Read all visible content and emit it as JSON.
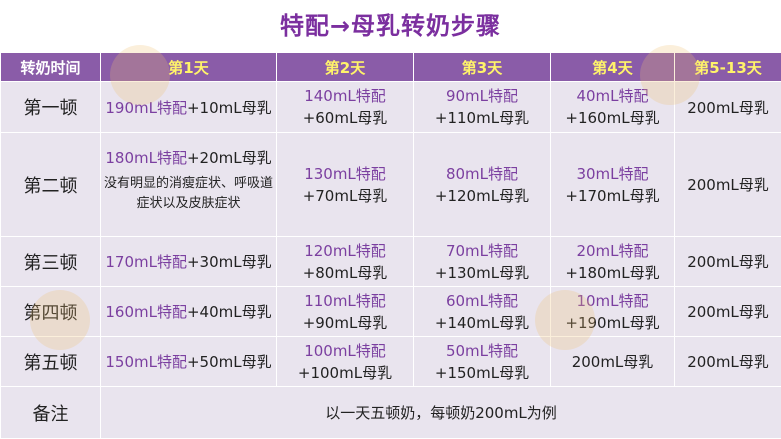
{
  "title": "特配→母乳转奶步骤",
  "header": {
    "label": "转奶时间",
    "days": [
      "第1天",
      "第2天",
      "第3天",
      "第4天",
      "第5-13天"
    ]
  },
  "rows": [
    {
      "meal": "第一顿",
      "cells": [
        {
          "formula": "190mL特配",
          "milk": "+10mL母乳",
          "inline": true
        },
        {
          "formula": "140mL特配",
          "milk": "+60mL母乳"
        },
        {
          "formula": "90mL特配",
          "milk": "+110mL母乳"
        },
        {
          "formula": "40mL特配",
          "milk": "+160mL母乳"
        },
        {
          "formula": "",
          "milk": "200mL母乳"
        }
      ]
    },
    {
      "meal": "第二顿",
      "note": "没有明显的消瘦症状、呼吸道症状以及皮肤症状",
      "cells": [
        {
          "formula": "180mL特配",
          "milk": "+20mL母乳",
          "inline": true
        },
        {
          "formula": "130mL特配",
          "milk": "+70mL母乳"
        },
        {
          "formula": "80mL特配",
          "milk": "+120mL母乳"
        },
        {
          "formula": "30mL特配",
          "milk": "+170mL母乳"
        },
        {
          "formula": "",
          "milk": "200mL母乳"
        }
      ]
    },
    {
      "meal": "第三顿",
      "cells": [
        {
          "formula": "170mL特配",
          "milk": "+30mL母乳",
          "inline": true
        },
        {
          "formula": "120mL特配",
          "milk": "+80mL母乳"
        },
        {
          "formula": "70mL特配",
          "milk": "+130mL母乳"
        },
        {
          "formula": "20mL特配",
          "milk": "+180mL母乳"
        },
        {
          "formula": "",
          "milk": "200mL母乳"
        }
      ]
    },
    {
      "meal": "第四顿",
      "cells": [
        {
          "formula": "160mL特配",
          "milk": "+40mL母乳",
          "inline": true
        },
        {
          "formula": "110mL特配",
          "milk": "+90mL母乳"
        },
        {
          "formula": "60mL特配",
          "milk": "+140mL母乳"
        },
        {
          "formula": "10mL特配",
          "milk": "+190mL母乳"
        },
        {
          "formula": "",
          "milk": "200mL母乳"
        }
      ]
    },
    {
      "meal": "第五顿",
      "cells": [
        {
          "formula": "150mL特配",
          "milk": "+50mL母乳",
          "inline": true
        },
        {
          "formula": "100mL特配",
          "milk": "+100mL母乳"
        },
        {
          "formula": "50mL特配",
          "milk": "+150mL母乳"
        },
        {
          "formula": "",
          "milk": "200mL母乳"
        },
        {
          "formula": "",
          "milk": "200mL母乳"
        }
      ]
    }
  ],
  "footer": {
    "label": "备注",
    "note": "以一天五顿奶，每顿奶200mL为例"
  },
  "colors": {
    "title": "#7b2f9f",
    "header_bg": "#8a5ca8",
    "header_day": "#fff36a",
    "cell_bg": "#e9e4ee",
    "formula_text": "#7b3fa0"
  }
}
